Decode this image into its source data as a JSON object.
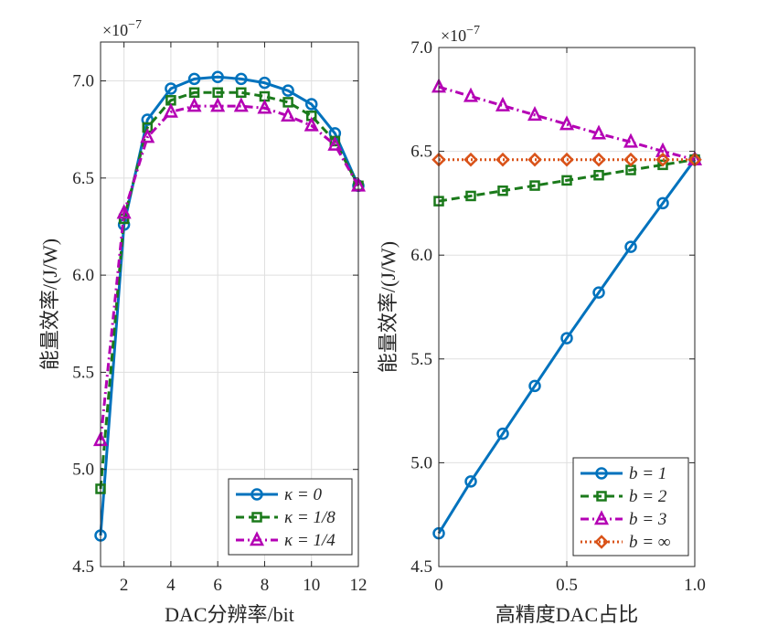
{
  "chart_data": [
    {
      "type": "line",
      "xlabel": "DAC分辨率/bit",
      "ylabel": "能量效率/(J/W)",
      "y_exponent_label": "×10",
      "y_exponent_power": "−7",
      "xlim": [
        1,
        12
      ],
      "ylim": [
        4.5,
        7.2
      ],
      "xticks": [
        2,
        4,
        6,
        8,
        10,
        12
      ],
      "xtick_labels": [
        "2",
        "4",
        "6",
        "8",
        "10",
        "12"
      ],
      "yticks": [
        4.5,
        5.0,
        5.5,
        6.0,
        6.5,
        7.0
      ],
      "ytick_labels": [
        "4.5",
        "5.0",
        "5.5",
        "6.0",
        "6.5",
        "7.0"
      ],
      "grid": true,
      "legend_position": "bottom-right",
      "x": [
        1,
        2,
        3,
        4,
        5,
        6,
        7,
        8,
        9,
        10,
        11,
        12
      ],
      "series": [
        {
          "name": "κ = 0",
          "color": "#0072BD",
          "marker": "circle",
          "dash": "solid",
          "values": [
            4.66,
            6.26,
            6.8,
            6.96,
            7.01,
            7.02,
            7.01,
            6.99,
            6.95,
            6.88,
            6.73,
            6.46
          ]
        },
        {
          "name": "κ = 1/8",
          "color": "#1B7A1B",
          "marker": "square",
          "dash": "dashed",
          "values": [
            4.9,
            6.29,
            6.76,
            6.9,
            6.94,
            6.94,
            6.94,
            6.92,
            6.89,
            6.82,
            6.69,
            6.46
          ]
        },
        {
          "name": "κ = 1/4",
          "color": "#B400B4",
          "marker": "triangle",
          "dash": "dashdot",
          "values": [
            5.15,
            6.32,
            6.71,
            6.84,
            6.87,
            6.87,
            6.87,
            6.86,
            6.82,
            6.77,
            6.67,
            6.46
          ]
        }
      ]
    },
    {
      "type": "line",
      "xlabel": "高精度DAC占比",
      "ylabel": "能量效率/(J/W)",
      "y_exponent_label": "×10",
      "y_exponent_power": "−7",
      "xlim": [
        0,
        1
      ],
      "ylim": [
        4.5,
        7.0
      ],
      "xticks": [
        0,
        0.5,
        1
      ],
      "xtick_labels": [
        "0",
        "0.5",
        "1.0"
      ],
      "yticks": [
        4.5,
        5.0,
        5.5,
        6.0,
        6.5,
        7.0
      ],
      "ytick_labels": [
        "4.5",
        "5.0",
        "5.5",
        "6.0",
        "6.5",
        "7.0"
      ],
      "grid": true,
      "legend_position": "bottom-right",
      "x": [
        0,
        0.125,
        0.25,
        0.375,
        0.5,
        0.625,
        0.75,
        0.875,
        1.0
      ],
      "series": [
        {
          "name": "b = 1",
          "color": "#0072BD",
          "marker": "circle",
          "dash": "solid",
          "values": [
            4.66,
            4.91,
            5.14,
            5.37,
            5.6,
            5.82,
            6.04,
            6.25,
            6.46
          ]
        },
        {
          "name": "b = 2",
          "color": "#1B7A1B",
          "marker": "square",
          "dash": "dashed",
          "values": [
            6.26,
            6.285,
            6.31,
            6.335,
            6.36,
            6.385,
            6.41,
            6.435,
            6.46
          ]
        },
        {
          "name": "b = 3",
          "color": "#B400B4",
          "marker": "triangle",
          "dash": "dashdot",
          "values": [
            6.81,
            6.765,
            6.72,
            6.675,
            6.63,
            6.585,
            6.545,
            6.5,
            6.46
          ]
        },
        {
          "name": "b = ∞",
          "color": "#D95319",
          "marker": "diamond",
          "dash": "dotted",
          "values": [
            6.46,
            6.46,
            6.46,
            6.46,
            6.46,
            6.46,
            6.46,
            6.46,
            6.46
          ]
        }
      ]
    }
  ]
}
